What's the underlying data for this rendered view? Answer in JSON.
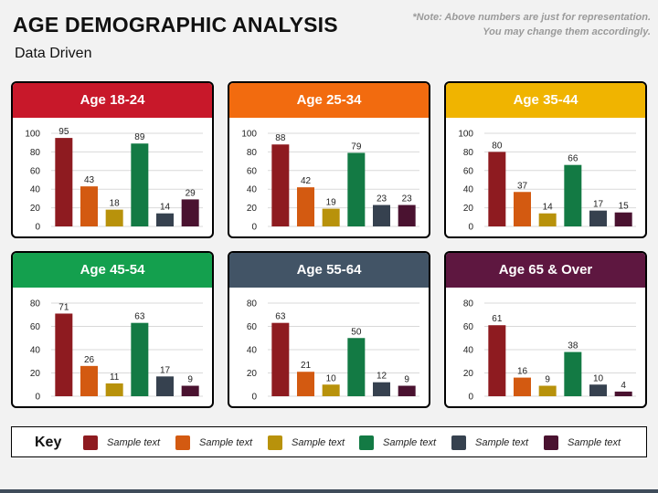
{
  "title": "AGE DEMOGRAPHIC ANALYSIS",
  "subtitle": "Data Driven",
  "note": {
    "line1": "*Note: Above numbers are just for representation.",
    "line2": "You may change them accordingly."
  },
  "key": {
    "title": "Key",
    "items": [
      {
        "label": "Sample text",
        "color": "#8e1b20"
      },
      {
        "label": "Sample text",
        "color": "#d35a11"
      },
      {
        "label": "Sample text",
        "color": "#b8920b"
      },
      {
        "label": "Sample text",
        "color": "#137a44"
      },
      {
        "label": "Sample text",
        "color": "#36414f"
      },
      {
        "label": "Sample text",
        "color": "#4a1230"
      }
    ]
  },
  "chart_data": [
    {
      "type": "bar",
      "title": "Age 18-24",
      "header_color": "#c8182a",
      "series": [
        {
          "values": [
            95,
            43,
            18,
            89,
            14,
            29
          ]
        }
      ],
      "ylim": [
        0,
        100
      ],
      "yticks": [
        0,
        20,
        40,
        60,
        80,
        100
      ],
      "grid": true
    },
    {
      "type": "bar",
      "title": "Age 25-34",
      "header_color": "#f26b0f",
      "series": [
        {
          "values": [
            88,
            42,
            19,
            79,
            23,
            23
          ]
        }
      ],
      "ylim": [
        0,
        100
      ],
      "yticks": [
        0,
        20,
        40,
        60,
        80,
        100
      ],
      "grid": true
    },
    {
      "type": "bar",
      "title": "Age 35-44",
      "header_color": "#f0b400",
      "series": [
        {
          "values": [
            80,
            37,
            14,
            66,
            17,
            15
          ]
        }
      ],
      "ylim": [
        0,
        100
      ],
      "yticks": [
        0,
        20,
        40,
        60,
        80,
        100
      ],
      "grid": true
    },
    {
      "type": "bar",
      "title": "Age 45-54",
      "header_color": "#14a04e",
      "series": [
        {
          "values": [
            71,
            26,
            11,
            63,
            17,
            9
          ]
        }
      ],
      "ylim": [
        0,
        80
      ],
      "yticks": [
        0,
        20,
        40,
        60,
        80
      ],
      "grid": true
    },
    {
      "type": "bar",
      "title": "Age 55-64",
      "header_color": "#425466",
      "series": [
        {
          "values": [
            63,
            21,
            10,
            50,
            12,
            9
          ]
        }
      ],
      "ylim": [
        0,
        80
      ],
      "yticks": [
        0,
        20,
        40,
        60,
        80
      ],
      "grid": true
    },
    {
      "type": "bar",
      "title": "Age 65 & Over",
      "header_color": "#5e1740",
      "series": [
        {
          "values": [
            61,
            16,
            9,
            38,
            10,
            4
          ]
        }
      ],
      "ylim": [
        0,
        80
      ],
      "yticks": [
        0,
        20,
        40,
        60,
        80
      ],
      "grid": true
    }
  ]
}
